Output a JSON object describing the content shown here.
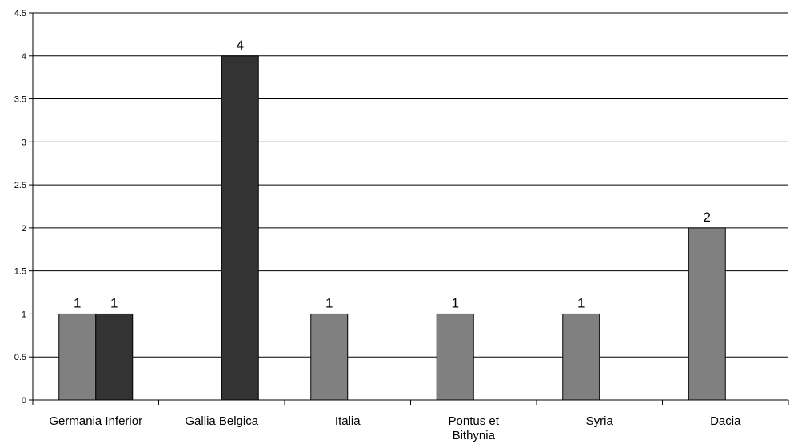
{
  "chart_data": {
    "type": "bar",
    "categories": [
      "Germania Inferior",
      "Gallia Belgica",
      "Italia",
      "Pontus et Bithynia",
      "Syria",
      "Dacia"
    ],
    "series": [
      {
        "color": "#808080",
        "values": [
          1,
          null,
          1,
          1,
          1,
          2
        ]
      },
      {
        "color": "#333333",
        "values": [
          1,
          4,
          null,
          null,
          null,
          null
        ]
      }
    ],
    "ylim": [
      0,
      4.5
    ],
    "yticks": [
      "0",
      "0.5",
      "1",
      "1.5",
      "2",
      "2.5",
      "3",
      "3.5",
      "4",
      "4.5"
    ],
    "grid": true,
    "legend": "none",
    "data_labels": true
  }
}
